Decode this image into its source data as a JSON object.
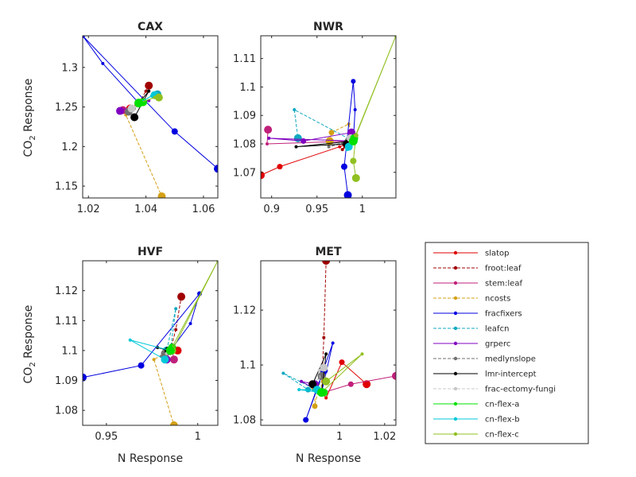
{
  "figure": {
    "ylabel_main": "CO",
    "ylabel_sub": "2",
    "ylabel_rest": " Response",
    "xlabel": "N Response"
  },
  "legend": [
    "slatop",
    "froot:leaf",
    "stem:leaf",
    "ncosts",
    "fracfixers",
    "leafcn",
    "grperc",
    "medlynslope",
    "lmr-intercept",
    "frac-ectomy-fungi",
    "cn-flex-a",
    "cn-flex-b",
    "cn-flex-c"
  ],
  "colors": {
    "slatop": "#e00000",
    "froot:leaf": "#a00000",
    "stem:leaf": "#c0207a",
    "ncosts": "#d4a017",
    "fracfixers": "#0000e0",
    "leafcn": "#10a8c0",
    "grperc": "#8000c0",
    "medlynslope": "#707070",
    "lmr-intercept": "#000000",
    "frac-ectomy-fungi": "#c8c8c8",
    "cn-flex-a": "#00e000",
    "cn-flex-b": "#00c8d8",
    "cn-flex-c": "#90c020"
  },
  "chart_data": [
    {
      "type": "line",
      "title": "CAX",
      "xlim": [
        1.018,
        1.065
      ],
      "ylim": [
        1.135,
        1.34
      ],
      "xticks": [
        1.02,
        1.04,
        1.06
      ],
      "xtick_labels": [
        "1.02",
        "1.04",
        "1.06"
      ],
      "yticks": [
        1.15,
        1.2,
        1.25,
        1.3
      ],
      "ytick_labels": [
        "1.15",
        "1.2",
        "1.25",
        "1.3"
      ],
      "xlabel": "",
      "ylabel": "",
      "default": [
        1.0375,
        1.255
      ],
      "series": [
        {
          "name": "slatop",
          "points": [
            [
              1.0365,
              1.252
            ],
            [
              1.0345,
              1.248
            ]
          ]
        },
        {
          "name": "froot:leaf",
          "points": [
            [
              1.04,
              1.27
            ],
            [
              1.041,
              1.277
            ]
          ]
        },
        {
          "name": "stem:leaf",
          "points": [
            [
              1.035,
              1.248
            ],
            [
              1.032,
              1.246
            ]
          ]
        },
        {
          "name": "ncosts",
          "points": [
            [
              1.033,
              1.24
            ],
            [
              1.0455,
              1.137
            ]
          ]
        },
        {
          "name": "fracfixers",
          "points": [
            [
              1.025,
              1.305
            ],
            [
              1.018,
              1.34
            ],
            [
              1.05,
              1.219
            ],
            [
              1.065,
              1.172
            ]
          ]
        },
        {
          "name": "leafcn",
          "points": [
            [
              1.043,
              1.262
            ],
            [
              1.044,
              1.266
            ]
          ]
        },
        {
          "name": "grperc",
          "points": [
            [
              1.041,
              1.258
            ],
            [
              1.031,
              1.245
            ]
          ]
        },
        {
          "name": "medlynslope",
          "points": [
            [
              1.036,
              1.248
            ],
            [
              1.034,
              1.244
            ]
          ]
        },
        {
          "name": "lmr-intercept",
          "points": [
            [
              1.041,
              1.27
            ],
            [
              1.036,
              1.237
            ]
          ]
        },
        {
          "name": "frac-ectomy-fungi",
          "points": [
            [
              1.036,
              1.25
            ],
            [
              1.035,
              1.248
            ]
          ]
        },
        {
          "name": "cn-flex-a",
          "points": [
            [
              1.038,
              1.254
            ],
            [
              1.039,
              1.256
            ]
          ]
        },
        {
          "name": "cn-flex-b",
          "points": [
            [
              1.042,
              1.264
            ],
            [
              1.043,
              1.265
            ]
          ]
        },
        {
          "name": "cn-flex-c",
          "points": [
            [
              1.043,
              1.262
            ],
            [
              1.0445,
              1.262
            ]
          ]
        }
      ]
    },
    {
      "type": "line",
      "title": "NWR",
      "xlim": [
        0.888,
        1.037
      ],
      "ylim": [
        1.061,
        1.118
      ],
      "xticks": [
        0.9,
        0.95,
        1
      ],
      "xtick_labels": [
        "0.9",
        "0.95",
        "1"
      ],
      "yticks": [
        1.07,
        1.08,
        1.09,
        1.1,
        1.11
      ],
      "ytick_labels": [
        "1.07",
        "1.08",
        "1.09",
        "1.1",
        "1.11"
      ],
      "xlabel": "",
      "ylabel": "",
      "default": [
        0.99,
        1.081
      ],
      "series": [
        {
          "name": "slatop",
          "points": [
            [
              0.975,
              1.079
            ],
            [
              0.909,
              1.072
            ],
            [
              0.888,
              1.069
            ]
          ]
        },
        {
          "name": "froot:leaf",
          "points": [
            [
              0.978,
              1.078
            ],
            [
              0.982,
              1.08
            ]
          ]
        },
        {
          "name": "stem:leaf",
          "points": [
            [
              0.895,
              1.08
            ],
            [
              0.896,
              1.085
            ]
          ]
        },
        {
          "name": "ncosts",
          "points": [
            [
              0.985,
              1.087
            ],
            [
              0.966,
              1.084
            ],
            [
              0.964,
              1.081
            ]
          ]
        },
        {
          "name": "fracfixers",
          "points": [
            [
              0.992,
              1.092
            ],
            [
              0.99,
              1.102
            ],
            [
              0.98,
              1.072
            ],
            [
              0.984,
              1.062
            ]
          ]
        },
        {
          "name": "leafcn",
          "points": [
            [
              0.925,
              1.092
            ],
            [
              0.929,
              1.082
            ]
          ]
        },
        {
          "name": "grperc",
          "points": [
            [
              0.897,
              1.082
            ],
            [
              0.935,
              1.081
            ],
            [
              0.988,
              1.084
            ]
          ]
        },
        {
          "name": "medlynslope",
          "points": [
            [
              0.963,
              1.079
            ],
            [
              0.985,
              1.081
            ]
          ]
        },
        {
          "name": "lmr-intercept",
          "points": [
            [
              0.927,
              1.079
            ],
            [
              0.983,
              1.08
            ]
          ]
        },
        {
          "name": "frac-ectomy-fungi",
          "points": [
            [
              0.986,
              1.08
            ],
            [
              0.987,
              1.082
            ]
          ]
        },
        {
          "name": "cn-flex-a",
          "points": [
            [
              0.989,
              1.081
            ],
            [
              0.991,
              1.082
            ]
          ]
        },
        {
          "name": "cn-flex-b",
          "points": [
            [
              0.983,
              1.078
            ],
            [
              0.985,
              1.079
            ]
          ]
        },
        {
          "name": "cn-flex-c",
          "points": [
            [
              1.037,
              1.118
            ],
            [
              0.993,
              1.083
            ],
            [
              0.99,
              1.074
            ],
            [
              0.993,
              1.068
            ]
          ]
        }
      ]
    },
    {
      "type": "line",
      "title": "HVF",
      "xlim": [
        0.937,
        1.011
      ],
      "ylim": [
        1.075,
        1.13
      ],
      "xticks": [
        0.95,
        1
      ],
      "xtick_labels": [
        "0.95",
        "1"
      ],
      "yticks": [
        1.08,
        1.09,
        1.1,
        1.11,
        1.12
      ],
      "ytick_labels": [
        "1.08",
        "1.09",
        "1.1",
        "1.11",
        "1.12"
      ],
      "xlabel": "",
      "ylabel": "",
      "default": [
        0.985,
        1.1
      ],
      "series": [
        {
          "name": "slatop",
          "points": [
            [
              0.985,
              1.099
            ],
            [
              0.989,
              1.1
            ]
          ]
        },
        {
          "name": "froot:leaf",
          "points": [
            [
              0.988,
              1.107
            ],
            [
              0.991,
              1.118
            ]
          ]
        },
        {
          "name": "stem:leaf",
          "points": [
            [
              0.986,
              1.1
            ],
            [
              0.987,
              1.097
            ]
          ]
        },
        {
          "name": "ncosts",
          "points": [
            [
              0.976,
              1.097
            ],
            [
              0.987,
              1.075
            ]
          ]
        },
        {
          "name": "fracfixers",
          "points": [
            [
              0.996,
              1.109
            ],
            [
              1.001,
              1.119
            ],
            [
              0.969,
              1.095
            ],
            [
              0.937,
              1.091
            ]
          ]
        },
        {
          "name": "leafcn",
          "points": [
            [
              0.988,
              1.114
            ],
            [
              0.983,
              1.1
            ]
          ]
        },
        {
          "name": "grperc",
          "points": [
            [
              0.984,
              1.099
            ],
            [
              0.983,
              1.097
            ]
          ]
        },
        {
          "name": "medlynslope",
          "points": [
            [
              0.98,
              1.098
            ],
            [
              0.982,
              1.099
            ]
          ]
        },
        {
          "name": "lmr-intercept",
          "points": [
            [
              0.978,
              1.101
            ],
            [
              0.984,
              1.1
            ]
          ]
        },
        {
          "name": "frac-ectomy-fungi",
          "points": [
            [
              0.983,
              1.099
            ],
            [
              0.985,
              1.1
            ]
          ]
        },
        {
          "name": "cn-flex-a",
          "points": [
            [
              0.984,
              1.1
            ],
            [
              0.986,
              1.101
            ]
          ]
        },
        {
          "name": "cn-flex-b",
          "points": [
            [
              0.963,
              1.1035
            ],
            [
              0.982,
              1.097
            ]
          ]
        },
        {
          "name": "cn-flex-c",
          "points": [
            [
              1.011,
              1.13
            ],
            [
              0.986,
              1.1
            ]
          ]
        }
      ]
    },
    {
      "type": "line",
      "title": "MET",
      "xlim": [
        0.965,
        1.025
      ],
      "ylim": [
        1.078,
        1.138
      ],
      "xticks": [
        1,
        1.02
      ],
      "xtick_labels": [
        "1",
        "1.02"
      ],
      "yticks": [
        1.08,
        1.1,
        1.12
      ],
      "ytick_labels": [
        "1.08",
        "1.1",
        "1.12"
      ],
      "xlabel": "",
      "ylabel": "",
      "default": [
        0.992,
        1.09
      ],
      "series": [
        {
          "name": "slatop",
          "points": [
            [
              0.994,
              1.088
            ],
            [
              1.001,
              1.101
            ],
            [
              1.012,
              1.093
            ]
          ]
        },
        {
          "name": "froot:leaf",
          "points": [
            [
              0.993,
              1.11
            ],
            [
              0.994,
              1.138
            ]
          ]
        },
        {
          "name": "stem:leaf",
          "points": [
            [
              0.993,
              1.09
            ],
            [
              1.005,
              1.093
            ],
            [
              1.025,
              1.096
            ]
          ]
        },
        {
          "name": "ncosts",
          "points": [
            [
              0.992,
              1.097
            ],
            [
              0.989,
              1.085
            ],
            [
              0.989,
              1.092
            ]
          ]
        },
        {
          "name": "fracfixers",
          "points": [
            [
              0.997,
              1.108
            ],
            [
              0.985,
              1.08
            ],
            [
              0.993,
              1.098
            ]
          ]
        },
        {
          "name": "leafcn",
          "points": [
            [
              0.975,
              1.097
            ],
            [
              0.986,
              1.091
            ],
            [
              0.992,
              1.09
            ]
          ]
        },
        {
          "name": "grperc",
          "points": [
            [
              0.983,
              1.094
            ],
            [
              0.989,
              1.093
            ]
          ]
        },
        {
          "name": "medlynslope",
          "points": [
            [
              0.988,
              1.093
            ],
            [
              0.992,
              1.096
            ]
          ]
        },
        {
          "name": "lmr-intercept",
          "points": [
            [
              0.994,
              1.104
            ],
            [
              0.988,
              1.093
            ]
          ]
        },
        {
          "name": "frac-ectomy-fungi",
          "points": [
            [
              0.991,
              1.098
            ],
            [
              0.993,
              1.099
            ]
          ]
        },
        {
          "name": "cn-flex-a",
          "points": [
            [
              0.99,
              1.09
            ],
            [
              0.993,
              1.09
            ]
          ]
        },
        {
          "name": "cn-flex-b",
          "points": [
            [
              0.982,
              1.091
            ],
            [
              0.99,
              1.091
            ]
          ]
        },
        {
          "name": "cn-flex-c",
          "points": [
            [
              1.01,
              1.104
            ],
            [
              0.994,
              1.094
            ]
          ]
        }
      ]
    }
  ]
}
